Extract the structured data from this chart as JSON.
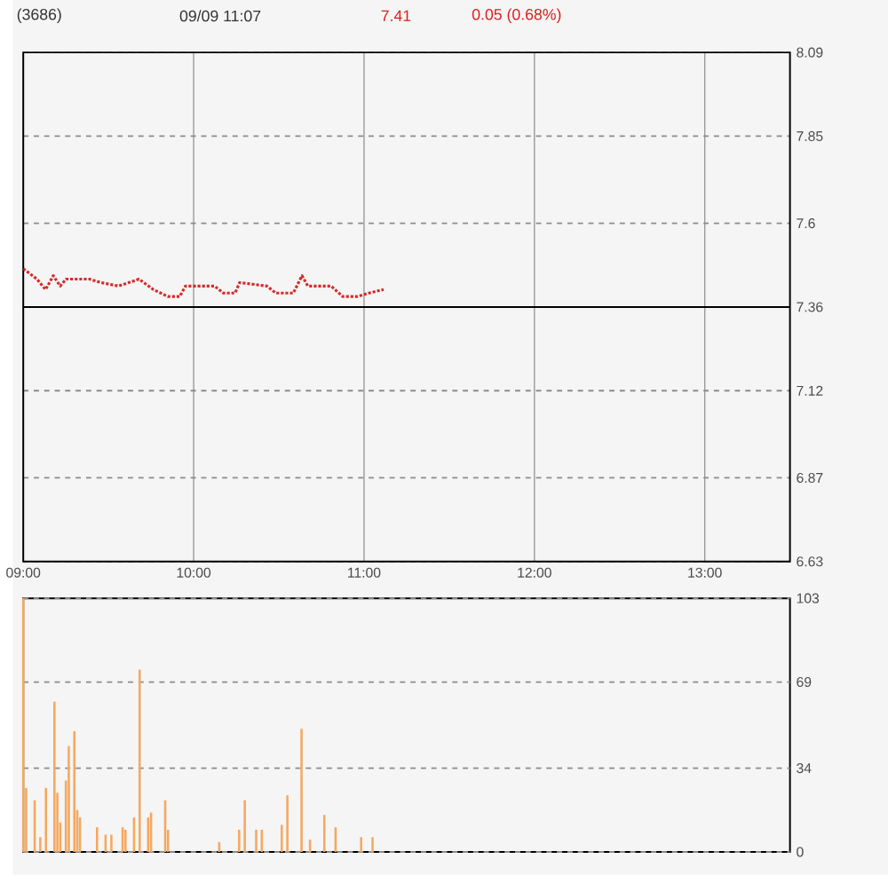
{
  "chart_data": [
    {
      "type": "line",
      "title": "(3686)",
      "subtitle": "09/09 11:07",
      "annotations": [
        "7.41",
        "0.05 (0.68%)"
      ],
      "x": [
        9.0,
        9.08,
        9.131,
        9.176,
        9.217,
        9.251,
        9.388,
        9.456,
        9.559,
        9.679,
        9.764,
        9.849,
        9.918,
        9.952,
        10.072,
        10.123,
        10.174,
        10.243,
        10.27,
        10.431,
        10.482,
        10.585,
        10.636,
        10.67,
        10.807,
        10.875,
        10.961,
        11.029,
        11.115
      ],
      "values": [
        7.47,
        7.44,
        7.41,
        7.45,
        7.42,
        7.44,
        7.44,
        7.43,
        7.42,
        7.44,
        7.41,
        7.39,
        7.39,
        7.42,
        7.42,
        7.42,
        7.4,
        7.4,
        7.43,
        7.42,
        7.4,
        7.4,
        7.45,
        7.42,
        7.42,
        7.39,
        7.39,
        7.4,
        7.41
      ],
      "color": "#d42a2a",
      "line_style": "dotted",
      "xlim": [
        9,
        13.5
      ],
      "xticks": [
        {
          "value": 9,
          "label": "09:00"
        },
        {
          "value": 10,
          "label": "10:00"
        },
        {
          "value": 11,
          "label": "11:00"
        },
        {
          "value": 12,
          "label": "12:00"
        },
        {
          "value": 13,
          "label": "13:00"
        }
      ],
      "ylim": [
        6.63,
        8.09
      ],
      "yticks": [
        6.63,
        6.87,
        7.12,
        7.36,
        7.6,
        7.85,
        8.09
      ],
      "grid": true,
      "ref_lines": [
        {
          "axis": "y",
          "value": 7.36,
          "color": "#000000",
          "line_style": "solid"
        }
      ]
    },
    {
      "type": "bar",
      "x": [
        9.0,
        9.017,
        9.067,
        9.1,
        9.133,
        9.183,
        9.2,
        9.217,
        9.25,
        9.267,
        9.3,
        9.317,
        9.333,
        9.433,
        9.483,
        9.517,
        9.583,
        9.6,
        9.65,
        9.683,
        9.733,
        9.75,
        9.833,
        9.85,
        10.15,
        10.267,
        10.3,
        10.367,
        10.4,
        10.517,
        10.55,
        10.633,
        10.683,
        10.767,
        10.833,
        10.983,
        11.05
      ],
      "values": [
        103,
        26,
        21,
        6,
        26,
        61,
        24,
        12,
        29,
        43,
        49,
        17,
        14,
        10,
        7,
        7,
        10,
        9,
        14,
        74,
        14,
        16,
        21,
        9,
        4,
        9,
        21,
        9,
        9,
        11,
        23,
        50,
        5,
        15,
        10,
        6,
        6
      ],
      "color": "#f5a860",
      "xlim": [
        9,
        13.5
      ],
      "ylim": [
        0,
        103
      ],
      "yticks": [
        0,
        34,
        69,
        103
      ],
      "grid": "y",
      "tick_labels": "y"
    }
  ]
}
